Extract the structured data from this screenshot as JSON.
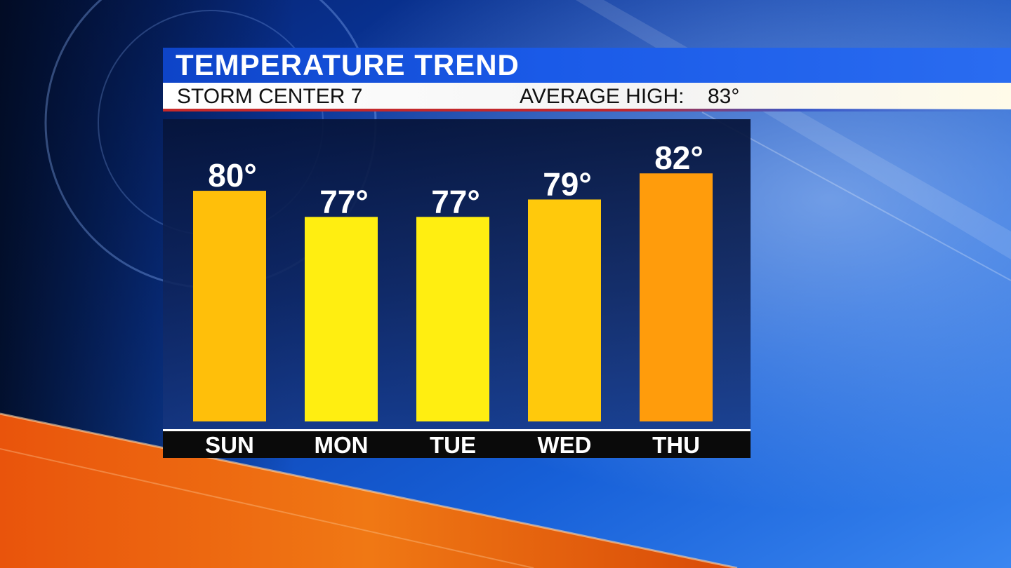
{
  "header": {
    "title": "TEMPERATURE TREND",
    "station": "STORM CENTER 7",
    "average_label": "AVERAGE HIGH:",
    "average_value": "83°"
  },
  "colors": {
    "title_band": "#1550dc",
    "bar_yellow": "#ffee11",
    "bar_gold": "#ffbf0a",
    "bar_orange": "#ff9c0c",
    "panel": "#0c2458",
    "accent_red": "#c82a2a"
  },
  "chart_data": {
    "type": "bar",
    "title": "TEMPERATURE TREND",
    "categories": [
      "SUN",
      "MON",
      "TUE",
      "WED",
      "THU"
    ],
    "values": [
      80,
      77,
      77,
      79,
      82
    ],
    "value_labels": [
      "80°",
      "77°",
      "77°",
      "79°",
      "82°"
    ],
    "bar_colors": [
      "#ffbf0a",
      "#ffee11",
      "#ffee11",
      "#ffc90c",
      "#ff9c0c"
    ],
    "ylim": [
      53.5,
      85
    ],
    "grid": false,
    "xlabel": "",
    "ylabel": ""
  }
}
